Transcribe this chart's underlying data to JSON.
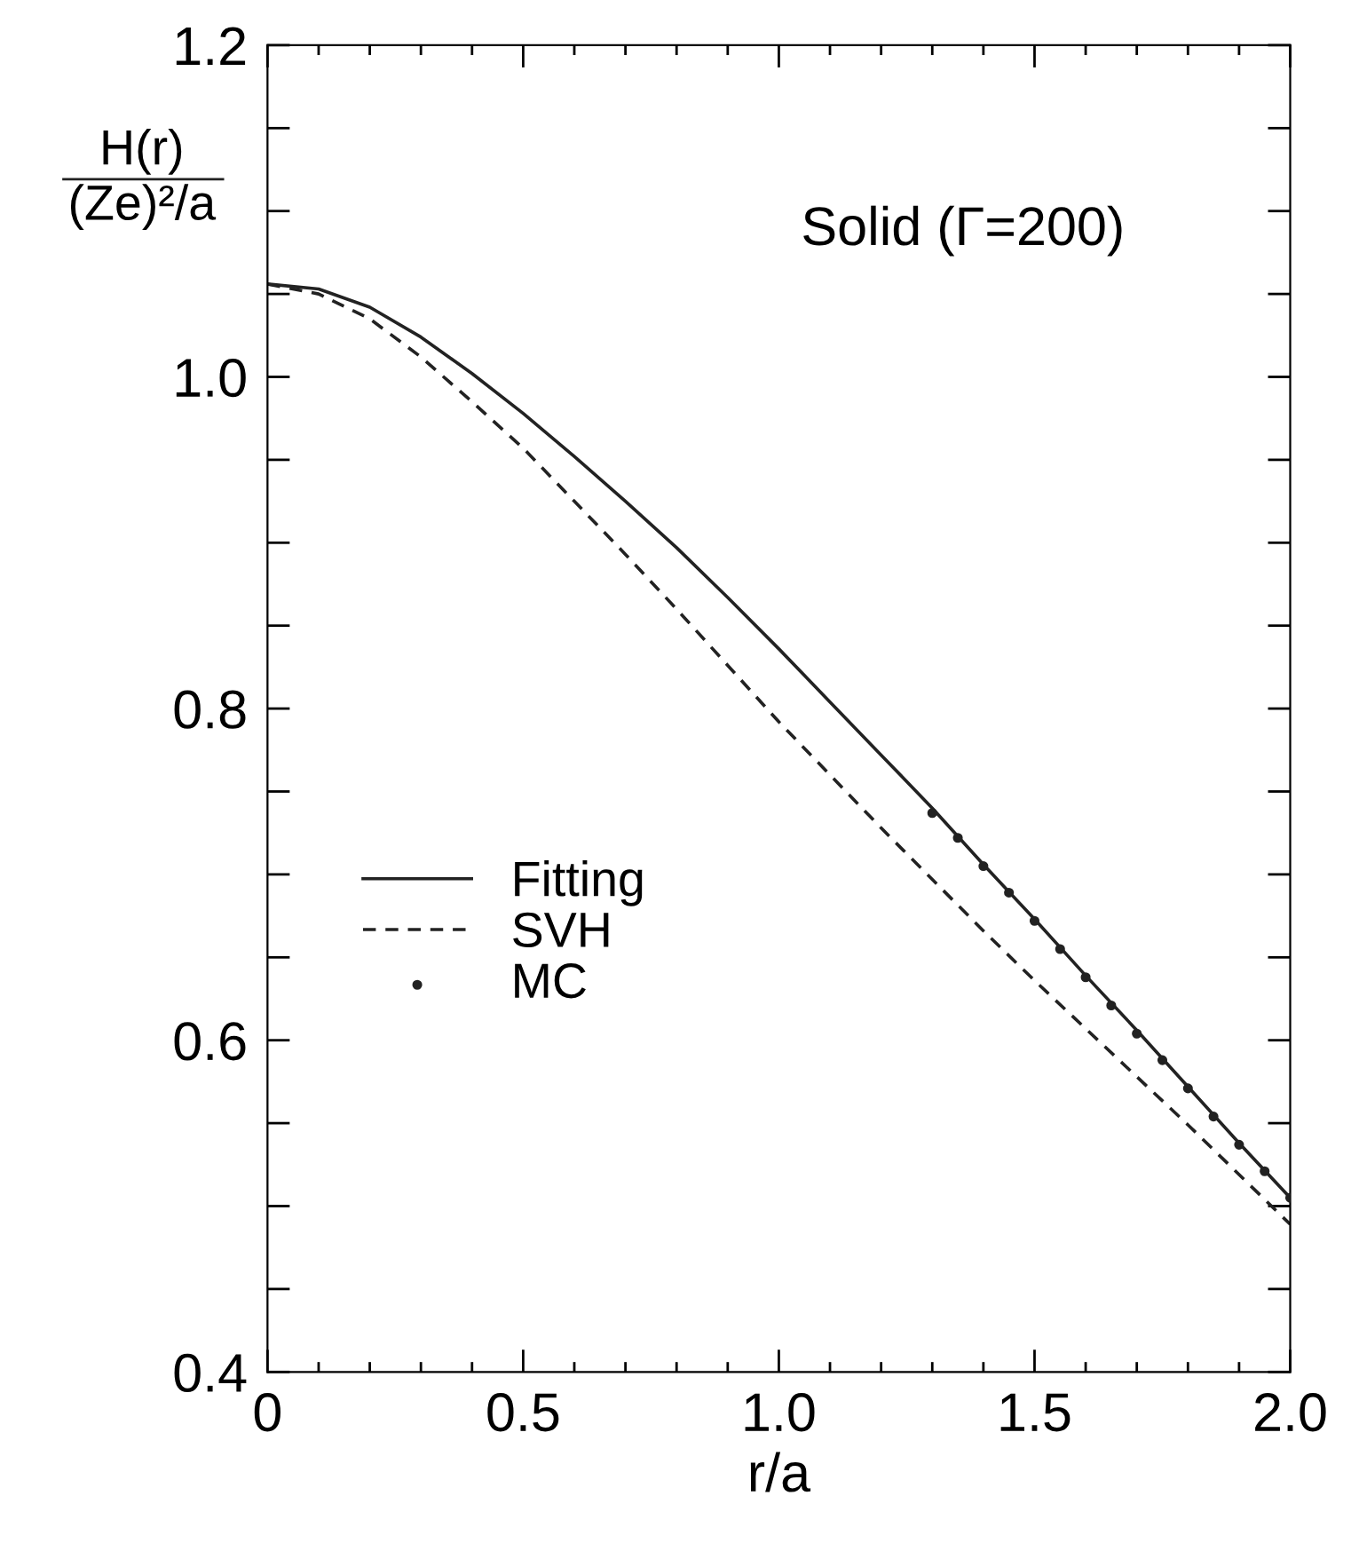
{
  "chart_data": {
    "type": "line",
    "ylabel": "H(r)\n(Ze)²/a",
    "xlabel": "r/a",
    "annotations": [
      "Solid (Γ=200)"
    ],
    "xlim": [
      0,
      2.0
    ],
    "ylim": [
      0.4,
      1.2
    ],
    "xticks": [
      0,
      {
        "value": 0.1,
        "label": null
      },
      {
        "value": 0.2,
        "label": null
      },
      {
        "value": 0.3,
        "label": null
      },
      {
        "value": 0.4,
        "label": null
      },
      0.5,
      {
        "value": 0.6,
        "label": null
      },
      {
        "value": 0.7,
        "label": null
      },
      {
        "value": 0.8,
        "label": null
      },
      {
        "value": 0.9,
        "label": null
      },
      {
        "value": 1.0,
        "label": "1.0"
      },
      {
        "value": 1.1,
        "label": null
      },
      {
        "value": 1.2,
        "label": null
      },
      {
        "value": 1.3,
        "label": null
      },
      {
        "value": 1.4,
        "label": null
      },
      1.5,
      {
        "value": 1.6,
        "label": null
      },
      {
        "value": 1.7,
        "label": null
      },
      {
        "value": 1.8,
        "label": null
      },
      {
        "value": 1.9,
        "label": null
      },
      {
        "value": 2.0,
        "label": "2.0"
      }
    ],
    "yticks": [
      0.4,
      {
        "value": 0.45,
        "label": null
      },
      {
        "value": 0.5,
        "label": null
      },
      {
        "value": 0.55,
        "label": null
      },
      0.6,
      {
        "value": 0.65,
        "label": null
      },
      {
        "value": 0.7,
        "label": null
      },
      {
        "value": 0.75,
        "label": null
      },
      0.8,
      {
        "value": 0.85,
        "label": null
      },
      {
        "value": 0.9,
        "label": null
      },
      {
        "value": 0.95,
        "label": null
      },
      {
        "value": 1.0,
        "label": "1.0"
      },
      {
        "value": 1.05,
        "label": null
      },
      {
        "value": 1.1,
        "label": null
      },
      {
        "value": 1.15,
        "label": null
      },
      1.2
    ],
    "grid": false,
    "legend": "center left",
    "series": [
      {
        "name": "Fitting",
        "color": "#222222",
        "line_style": "solid",
        "marker": "none",
        "x": [
          0,
          0.1,
          0.2,
          0.3,
          0.4,
          0.5,
          0.6,
          0.7,
          0.8,
          0.9,
          1.0,
          1.1,
          1.2,
          1.3,
          1.4,
          1.5,
          1.6,
          1.7,
          1.8,
          1.9,
          2.0
        ],
        "values": [
          1.056,
          1.053,
          1.042,
          1.024,
          1.002,
          0.978,
          0.952,
          0.925,
          0.897,
          0.867,
          0.836,
          0.804,
          0.772,
          0.74,
          0.706,
          0.673,
          0.639,
          0.606,
          0.572,
          0.538,
          0.505
        ]
      },
      {
        "name": "SVH",
        "color": "#222222",
        "line_style": "dashed",
        "marker": "none",
        "x": [
          0,
          0.1,
          0.2,
          0.3,
          0.4,
          0.5,
          0.6,
          0.7,
          0.8,
          0.9,
          1.0,
          1.1,
          1.2,
          1.3,
          1.4,
          1.5,
          1.6,
          1.7,
          1.8,
          1.9,
          2.0
        ],
        "values": [
          1.056,
          1.05,
          1.035,
          1.012,
          0.985,
          0.957,
          0.925,
          0.893,
          0.86,
          0.826,
          0.792,
          0.76,
          0.728,
          0.697,
          0.666,
          0.636,
          0.607,
          0.578,
          0.549,
          0.519,
          0.489
        ]
      },
      {
        "name": "MC",
        "type": "scatter",
        "color": "#222222",
        "marker": "circle",
        "x": [
          1.3,
          1.35,
          1.4,
          1.45,
          1.5,
          1.55,
          1.6,
          1.65,
          1.7,
          1.75,
          1.8,
          1.85,
          1.9,
          1.95,
          2.0
        ],
        "values": [
          0.737,
          0.722,
          0.705,
          0.689,
          0.672,
          0.655,
          0.638,
          0.621,
          0.604,
          0.588,
          0.571,
          0.554,
          0.537,
          0.521,
          0.505
        ]
      }
    ]
  }
}
